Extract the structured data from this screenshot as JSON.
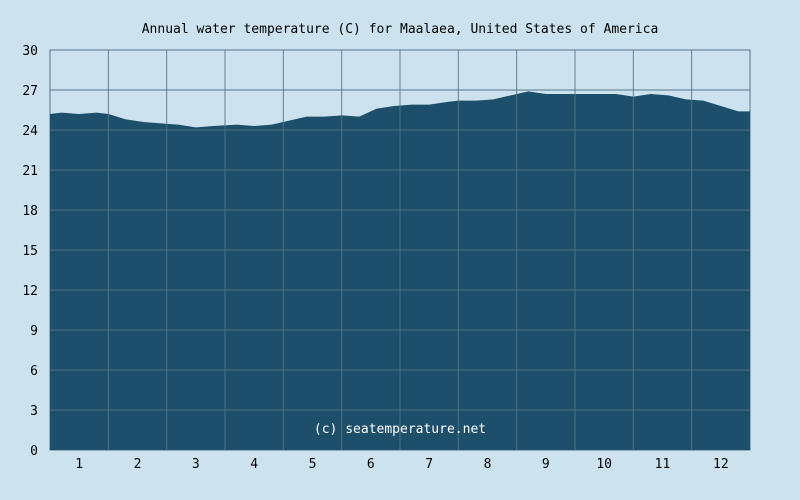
{
  "chart_data": {
    "type": "area",
    "title": "Annual water temperature (C) for Maalaea, United States of America",
    "watermark": "(c) seatemperature.net",
    "xlabel": "",
    "ylabel": "",
    "categories": [
      "1",
      "2",
      "3",
      "4",
      "5",
      "6",
      "7",
      "8",
      "9",
      "10",
      "11",
      "12"
    ],
    "yticks": [
      "0",
      "3",
      "6",
      "9",
      "12",
      "15",
      "18",
      "21",
      "24",
      "27",
      "30"
    ],
    "ylim": [
      0,
      30
    ],
    "xlim": [
      0,
      12
    ],
    "grid": true,
    "legend": "none",
    "series": [
      {
        "x": [
          0,
          0.2,
          0.5,
          0.8,
          1.0,
          1.3,
          1.6,
          1.9,
          2.2,
          2.5,
          2.8,
          3.2,
          3.5,
          3.8,
          4.1,
          4.4,
          4.7,
          5.0,
          5.3,
          5.6,
          5.9,
          6.2,
          6.5,
          6.8,
          7.0,
          7.3,
          7.6,
          7.9,
          8.2,
          8.5,
          8.8,
          9.1,
          9.4,
          9.7,
          10.0,
          10.3,
          10.6,
          10.9,
          11.2,
          11.5,
          11.8,
          12.0
        ],
        "values": [
          25.2,
          25.3,
          25.2,
          25.3,
          25.2,
          24.8,
          24.6,
          24.5,
          24.4,
          24.2,
          24.3,
          24.4,
          24.3,
          24.4,
          24.7,
          25.0,
          25.0,
          25.1,
          25.0,
          25.6,
          25.8,
          25.9,
          25.9,
          26.1,
          26.2,
          26.2,
          26.3,
          26.6,
          26.9,
          26.7,
          26.7,
          26.7,
          26.7,
          26.7,
          26.5,
          26.7,
          26.6,
          26.3,
          26.2,
          25.8,
          25.4,
          25.4
        ]
      }
    ],
    "colors": {
      "background": "#cce3ef",
      "fill": "#1d4f6b",
      "grid": "#56758a",
      "axis": "#56758a"
    }
  }
}
